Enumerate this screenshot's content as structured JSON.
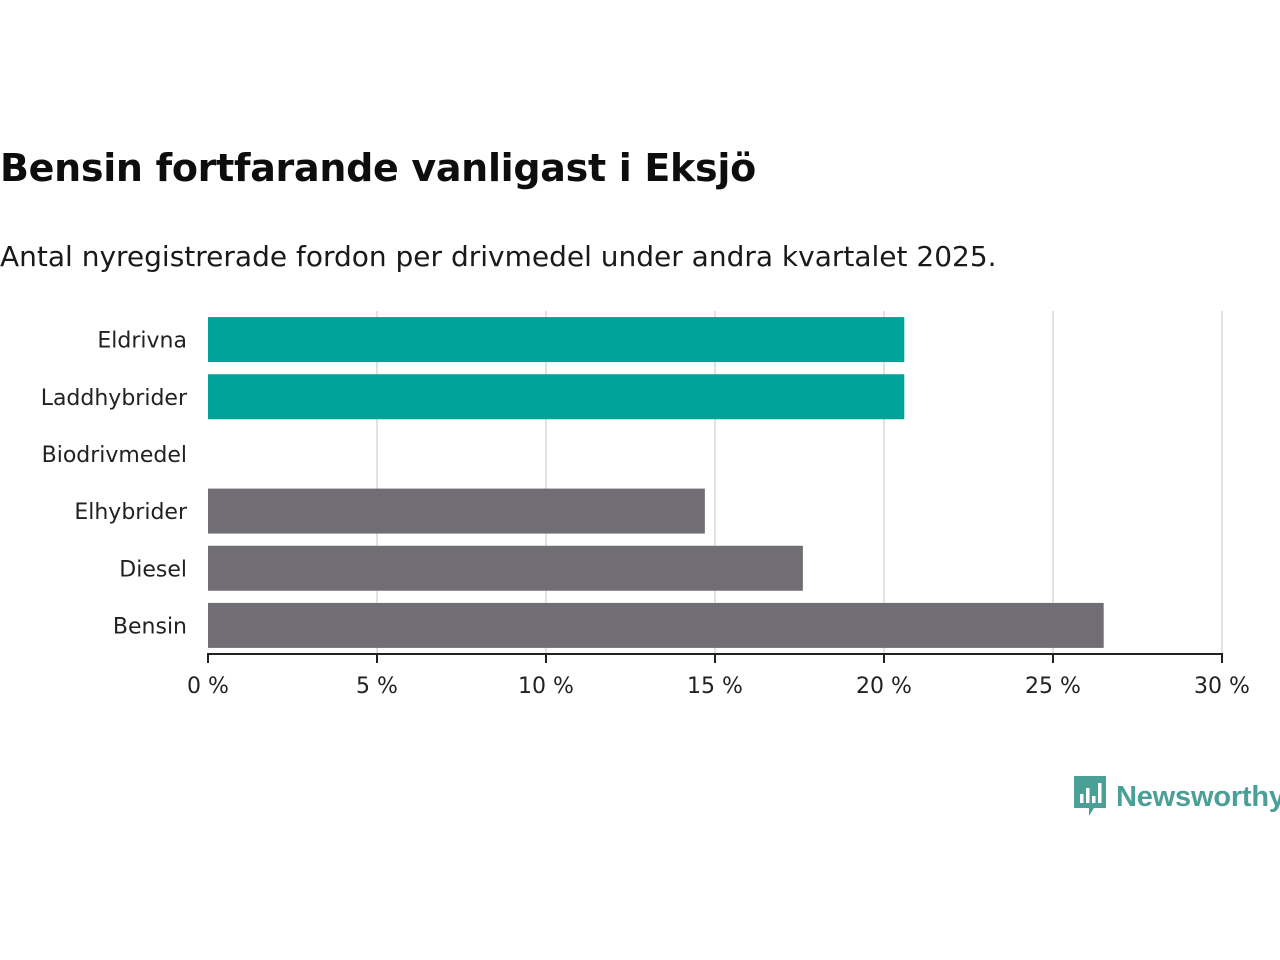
{
  "header": {
    "title": "Bensin fortfarande vanligast i Eksjö",
    "subtitle": "Antal nyregistrerade fordon per drivmedel under andra kvartalet 2025."
  },
  "brand": {
    "name": "Newsworthy",
    "icon": "newsworthy-logo-icon",
    "color": "#4a9f96"
  },
  "chart_data": {
    "type": "bar",
    "orientation": "horizontal",
    "categories": [
      "Eldrivna",
      "Laddhybrider",
      "Biodrivmedel",
      "Elhybrider",
      "Diesel",
      "Bensin"
    ],
    "values": [
      20.6,
      20.6,
      0,
      14.7,
      17.6,
      26.5
    ],
    "colors": [
      "#00a398",
      "#00a398",
      "#00a398",
      "#706e74",
      "#706e74",
      "#706e74"
    ],
    "xlim": [
      0,
      30
    ],
    "xticks": [
      0,
      5,
      10,
      15,
      20,
      25,
      30
    ],
    "xtick_labels": [
      "0 %",
      "5 %",
      "10 %",
      "15 %",
      "20 %",
      "25 %",
      "30 %"
    ],
    "grid": true,
    "xlabel": "",
    "ylabel": ""
  }
}
